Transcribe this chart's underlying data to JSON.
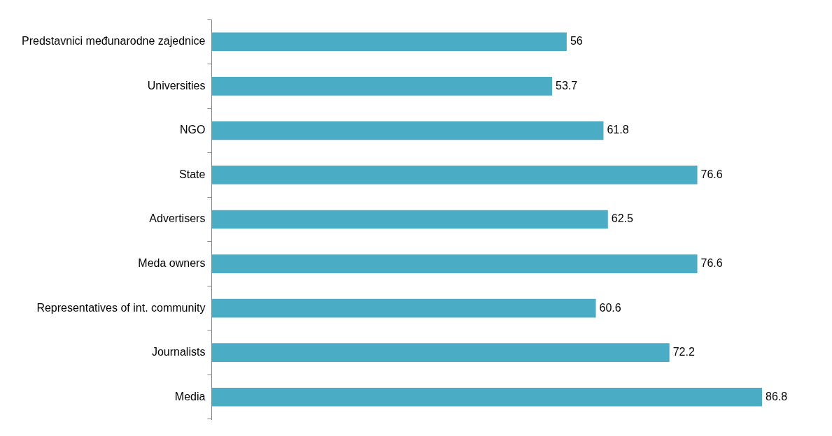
{
  "chart_data": {
    "type": "bar",
    "orientation": "horizontal",
    "categories": [
      "Predstavnici međunarodne zajednice",
      "Universities",
      "NGO",
      "State",
      "Advertisers",
      "Meda owners",
      "Representatives of int. community",
      "Journalists",
      "Media"
    ],
    "values": [
      56,
      53.7,
      61.8,
      76.6,
      62.5,
      76.6,
      60.6,
      72.2,
      86.8
    ],
    "color": "#4bacc6",
    "data_labels": true,
    "legend": false
  }
}
